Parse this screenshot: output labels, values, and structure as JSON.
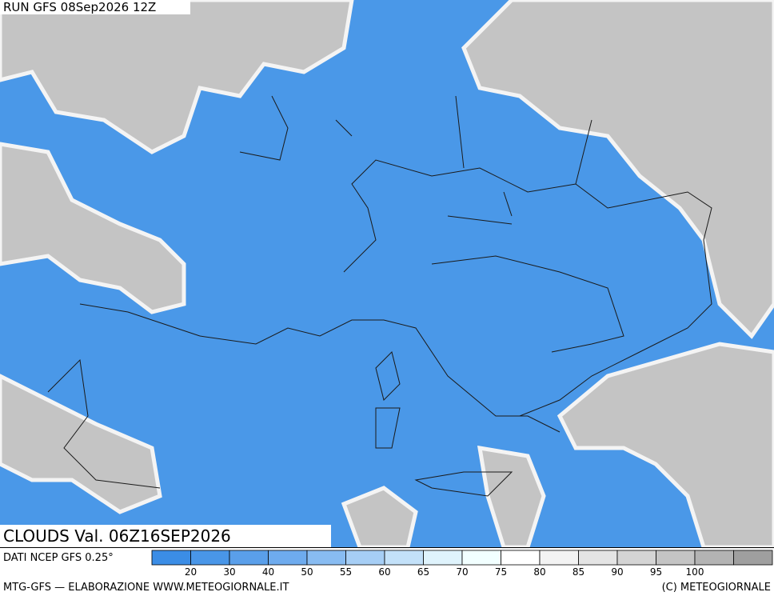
{
  "header": {
    "run": "RUN GFS 08Sep2026 12Z"
  },
  "map": {
    "title": "CLOUDS Val. 06Z16SEP2026"
  },
  "legend": {
    "source": "DATI NCEP GFS 0.25°",
    "colors": [
      "#3b8de6",
      "#4996e8",
      "#5a9fea",
      "#6eabee",
      "#88bcf2",
      "#a6cef5",
      "#c3e1f9",
      "#dff3fc",
      "#f2ffff",
      "#ffffff",
      "#f3f3f3",
      "#e4e4e4",
      "#d4d4d4",
      "#c4c4c4",
      "#b3b3b3",
      "#9f9f9f"
    ],
    "labels": [
      20,
      30,
      40,
      50,
      55,
      60,
      65,
      70,
      75,
      80,
      85,
      90,
      95,
      100
    ]
  },
  "footer": {
    "credit": "MTG-GFS — ELABORAZIONE WWW.METEOGIORNALE.IT",
    "copyright": "(C) METEOGIORNALE"
  }
}
